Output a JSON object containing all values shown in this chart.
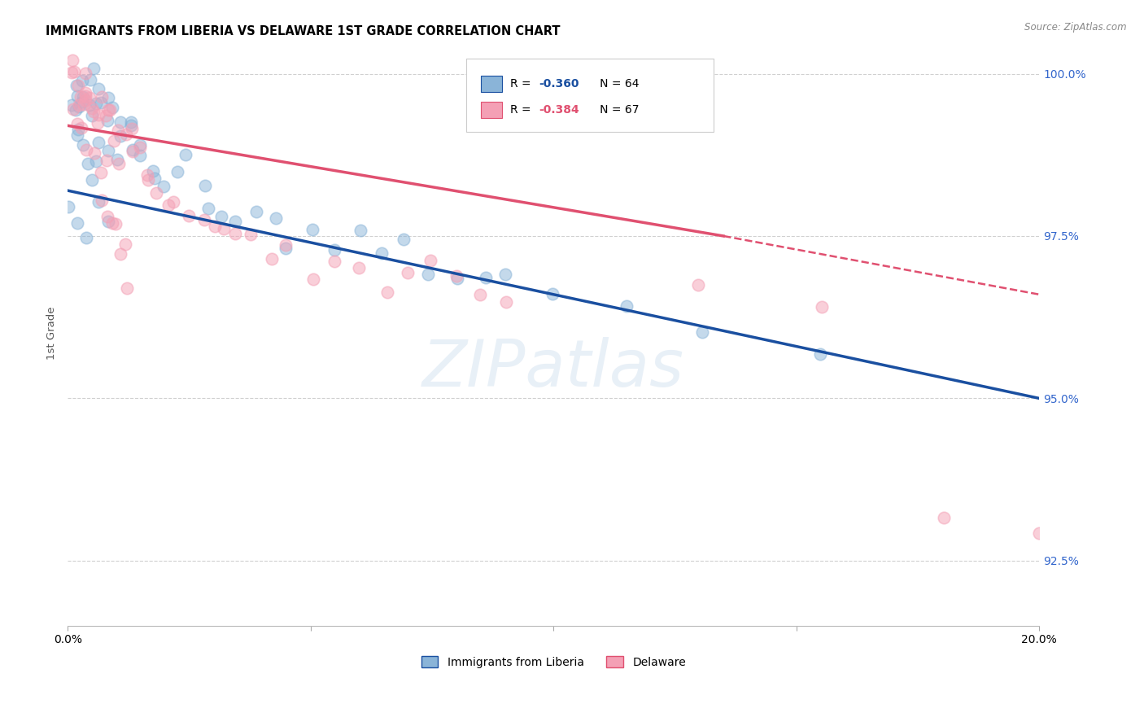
{
  "title": "IMMIGRANTS FROM LIBERIA VS DELAWARE 1ST GRADE CORRELATION CHART",
  "source": "Source: ZipAtlas.com",
  "ylabel": "1st Grade",
  "legend_label1": "Immigrants from Liberia",
  "legend_label2": "Delaware",
  "R1": -0.36,
  "N1": 64,
  "R2": -0.384,
  "N2": 67,
  "xmin": 0.0,
  "xmax": 0.2,
  "ymin": 0.915,
  "ymax": 1.005,
  "yticks": [
    0.925,
    0.95,
    0.975,
    1.0
  ],
  "ytick_labels": [
    "92.5%",
    "95.0%",
    "97.5%",
    "100.0%"
  ],
  "color_blue": "#8ab4d8",
  "color_pink": "#f4a0b5",
  "line_color_blue": "#1a4fa0",
  "line_color_pink": "#e05070",
  "watermark": "ZIPatlas",
  "blue_line_x0": 0.0,
  "blue_line_y0": 0.982,
  "blue_line_x1": 0.2,
  "blue_line_y1": 0.95,
  "pink_line_x0": 0.0,
  "pink_line_y0": 0.992,
  "pink_line_x1_solid": 0.135,
  "pink_line_y1_solid": 0.975,
  "pink_line_x1_dash": 0.2,
  "pink_line_y1_dash": 0.966,
  "blue_scatter_x": [
    0.001,
    0.001,
    0.002,
    0.002,
    0.002,
    0.003,
    0.003,
    0.004,
    0.004,
    0.005,
    0.005,
    0.005,
    0.006,
    0.006,
    0.007,
    0.007,
    0.008,
    0.008,
    0.009,
    0.009,
    0.01,
    0.01,
    0.011,
    0.012,
    0.013,
    0.014,
    0.015,
    0.016,
    0.017,
    0.018,
    0.02,
    0.022,
    0.025,
    0.028,
    0.03,
    0.032,
    0.035,
    0.038,
    0.042,
    0.045,
    0.05,
    0.055,
    0.06,
    0.065,
    0.07,
    0.075,
    0.08,
    0.085,
    0.09,
    0.1,
    0.001,
    0.002,
    0.003,
    0.004,
    0.005,
    0.006,
    0.007,
    0.008,
    0.115,
    0.13,
    0.155,
    0.001,
    0.002,
    0.003
  ],
  "blue_scatter_y": [
    0.999,
    0.997,
    0.999,
    0.997,
    0.995,
    0.998,
    0.996,
    0.997,
    0.995,
    0.998,
    0.996,
    0.994,
    0.997,
    0.994,
    0.996,
    0.993,
    0.995,
    0.991,
    0.994,
    0.99,
    0.993,
    0.988,
    0.991,
    0.99,
    0.989,
    0.987,
    0.988,
    0.986,
    0.985,
    0.984,
    0.984,
    0.985,
    0.983,
    0.981,
    0.98,
    0.979,
    0.979,
    0.978,
    0.977,
    0.976,
    0.975,
    0.974,
    0.973,
    0.972,
    0.971,
    0.97,
    0.969,
    0.968,
    0.967,
    0.965,
    0.993,
    0.991,
    0.989,
    0.987,
    0.985,
    0.983,
    0.981,
    0.979,
    0.963,
    0.96,
    0.957,
    0.978,
    0.976,
    0.974
  ],
  "pink_scatter_x": [
    0.001,
    0.001,
    0.001,
    0.002,
    0.002,
    0.002,
    0.003,
    0.003,
    0.003,
    0.004,
    0.004,
    0.005,
    0.005,
    0.005,
    0.006,
    0.006,
    0.007,
    0.007,
    0.008,
    0.008,
    0.009,
    0.009,
    0.01,
    0.011,
    0.012,
    0.013,
    0.014,
    0.015,
    0.016,
    0.017,
    0.018,
    0.02,
    0.022,
    0.025,
    0.028,
    0.03,
    0.032,
    0.035,
    0.038,
    0.042,
    0.045,
    0.05,
    0.055,
    0.06,
    0.065,
    0.07,
    0.075,
    0.08,
    0.085,
    0.09,
    0.001,
    0.002,
    0.003,
    0.004,
    0.005,
    0.006,
    0.007,
    0.008,
    0.009,
    0.01,
    0.011,
    0.012,
    0.013,
    0.13,
    0.155,
    0.18,
    0.2
  ],
  "pink_scatter_y": [
    1.001,
    0.999,
    0.998,
    1.0,
    0.998,
    0.996,
    0.999,
    0.997,
    0.995,
    0.998,
    0.996,
    0.997,
    0.995,
    0.993,
    0.996,
    0.994,
    0.995,
    0.992,
    0.994,
    0.991,
    0.993,
    0.989,
    0.992,
    0.99,
    0.989,
    0.988,
    0.987,
    0.986,
    0.985,
    0.984,
    0.983,
    0.982,
    0.981,
    0.98,
    0.979,
    0.978,
    0.977,
    0.976,
    0.975,
    0.974,
    0.973,
    0.972,
    0.971,
    0.97,
    0.971,
    0.97,
    0.969,
    0.968,
    0.967,
    0.966,
    0.994,
    0.992,
    0.99,
    0.988,
    0.986,
    0.984,
    0.982,
    0.98,
    0.978,
    0.976,
    0.974,
    0.972,
    0.97,
    0.968,
    0.966,
    0.931,
    0.929
  ]
}
